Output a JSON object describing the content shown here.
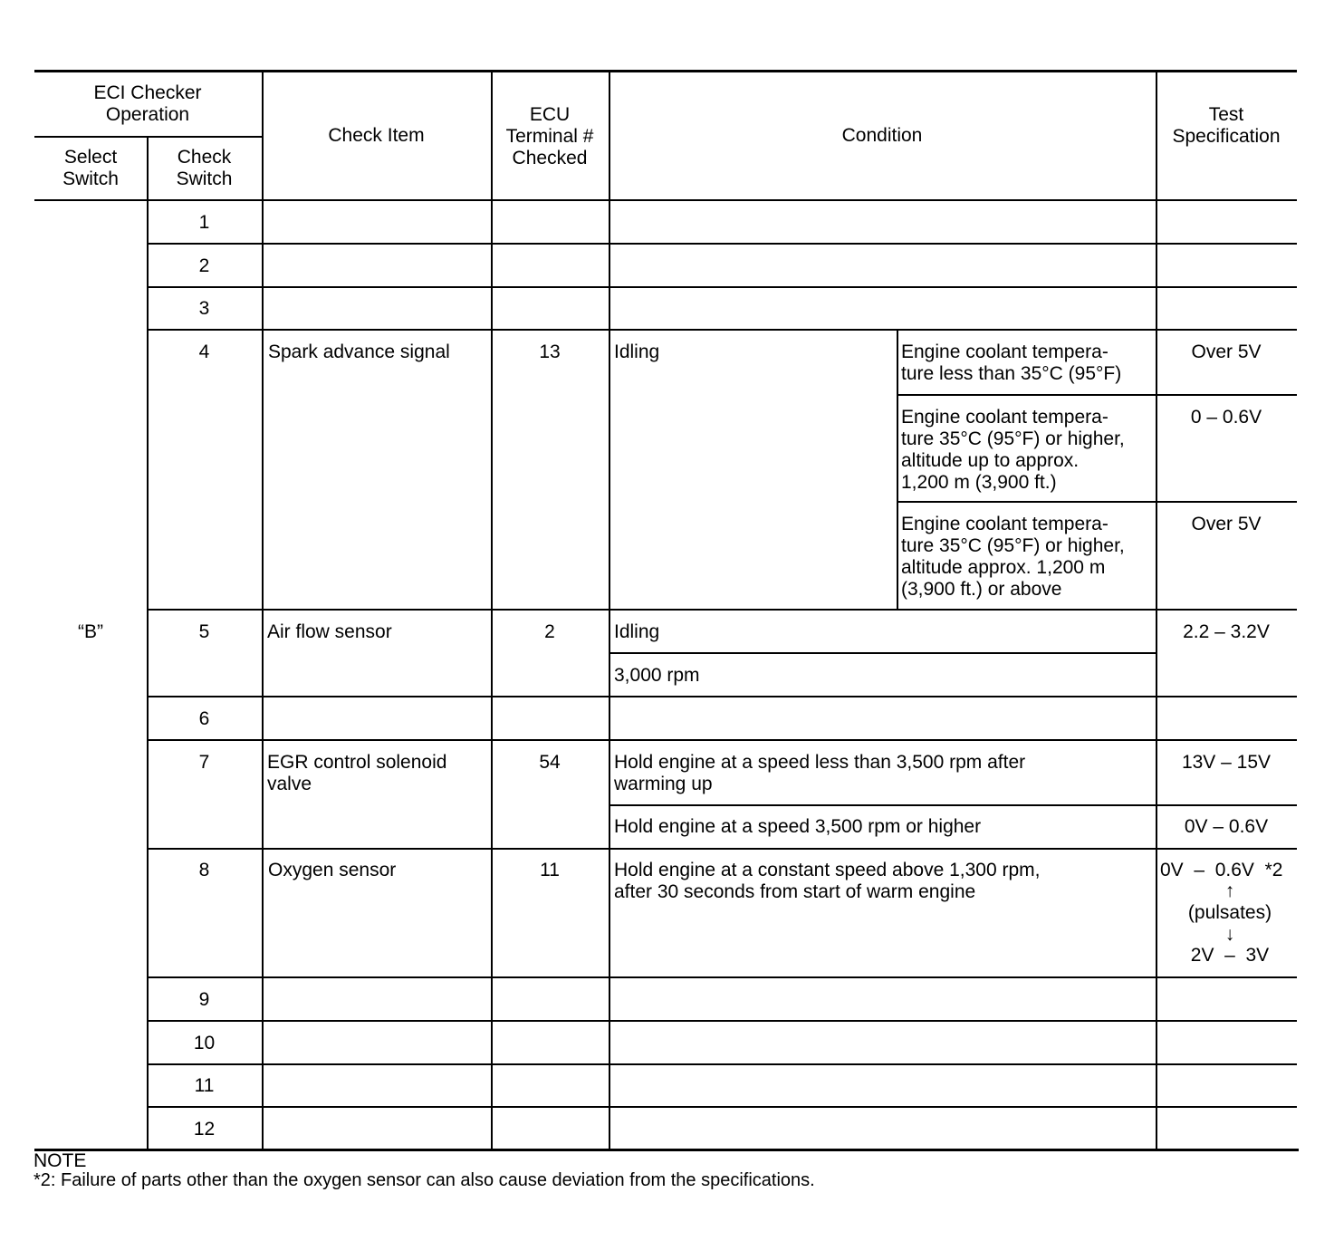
{
  "header": {
    "eci_checker_operation": "ECI Checker\nOperation",
    "select_switch": "Select\nSwitch",
    "check_switch": "Check\nSwitch",
    "check_item": "Check  Item",
    "ecu_terminal": "ECU\nTerminal  #\nChecked",
    "condition": "Condition",
    "test_specification": "Test\nSpecification"
  },
  "select_switch_value": "“B”",
  "rows": {
    "r1": {
      "switch": "1"
    },
    "r2": {
      "switch": "2"
    },
    "r3": {
      "switch": "3"
    },
    "r4": {
      "switch": "4",
      "item": "Spark advance signal",
      "terminal": "13",
      "condition": "Idling",
      "sub1_condition": "Engine coolant tempera-\nture less than 35°C (95°F)",
      "sub1_spec": "Over  5V",
      "sub2_condition": "Engine coolant tempera-\nture 35°C (95°F) or higher,\naltitude up to approx.\n1,200 m (3,900 ft.)",
      "sub2_spec": "0  –  0.6V",
      "sub3_condition": "Engine coolant tempera-\nture 35°C (95°F) or higher,\naltitude approx. 1,200 m\n(3,900 ft.) or above",
      "sub3_spec": "Over  5V"
    },
    "r5": {
      "switch": "5",
      "item": "Air flow sensor",
      "terminal": "2",
      "condition1": "Idling",
      "condition2": "3,000 rpm",
      "spec": "2.2  –  3.2V"
    },
    "r6": {
      "switch": "6"
    },
    "r7": {
      "switch": "7",
      "item": "EGR control solenoid\nvalve",
      "terminal": "54",
      "condition1": "Hold engine at a speed less than 3,500 rpm after\nwarming up",
      "spec1": "13V  –  15V",
      "condition2": "Hold engine at a speed 3,500 rpm or higher",
      "spec2": "0V  –  0.6V"
    },
    "r8": {
      "switch": "8",
      "item": "Oxygen sensor",
      "terminal": "11",
      "condition": "Hold engine at a constant speed above 1,300 rpm,\nafter 30 seconds from start of warm engine",
      "spec_line1": "0V  –  0.6V  *2",
      "spec_arrow_up": "↑",
      "spec_line2": "(pulsates)",
      "spec_arrow_down": "↓",
      "spec_line3": "2V  –  3V"
    },
    "r9": {
      "switch": "9"
    },
    "r10": {
      "switch": "10"
    },
    "r11": {
      "switch": "11"
    },
    "r12": {
      "switch": "12"
    }
  },
  "note": {
    "title": "NOTE",
    "text": "*2:  Failure of parts other than the oxygen sensor can also cause deviation from the specifications."
  }
}
